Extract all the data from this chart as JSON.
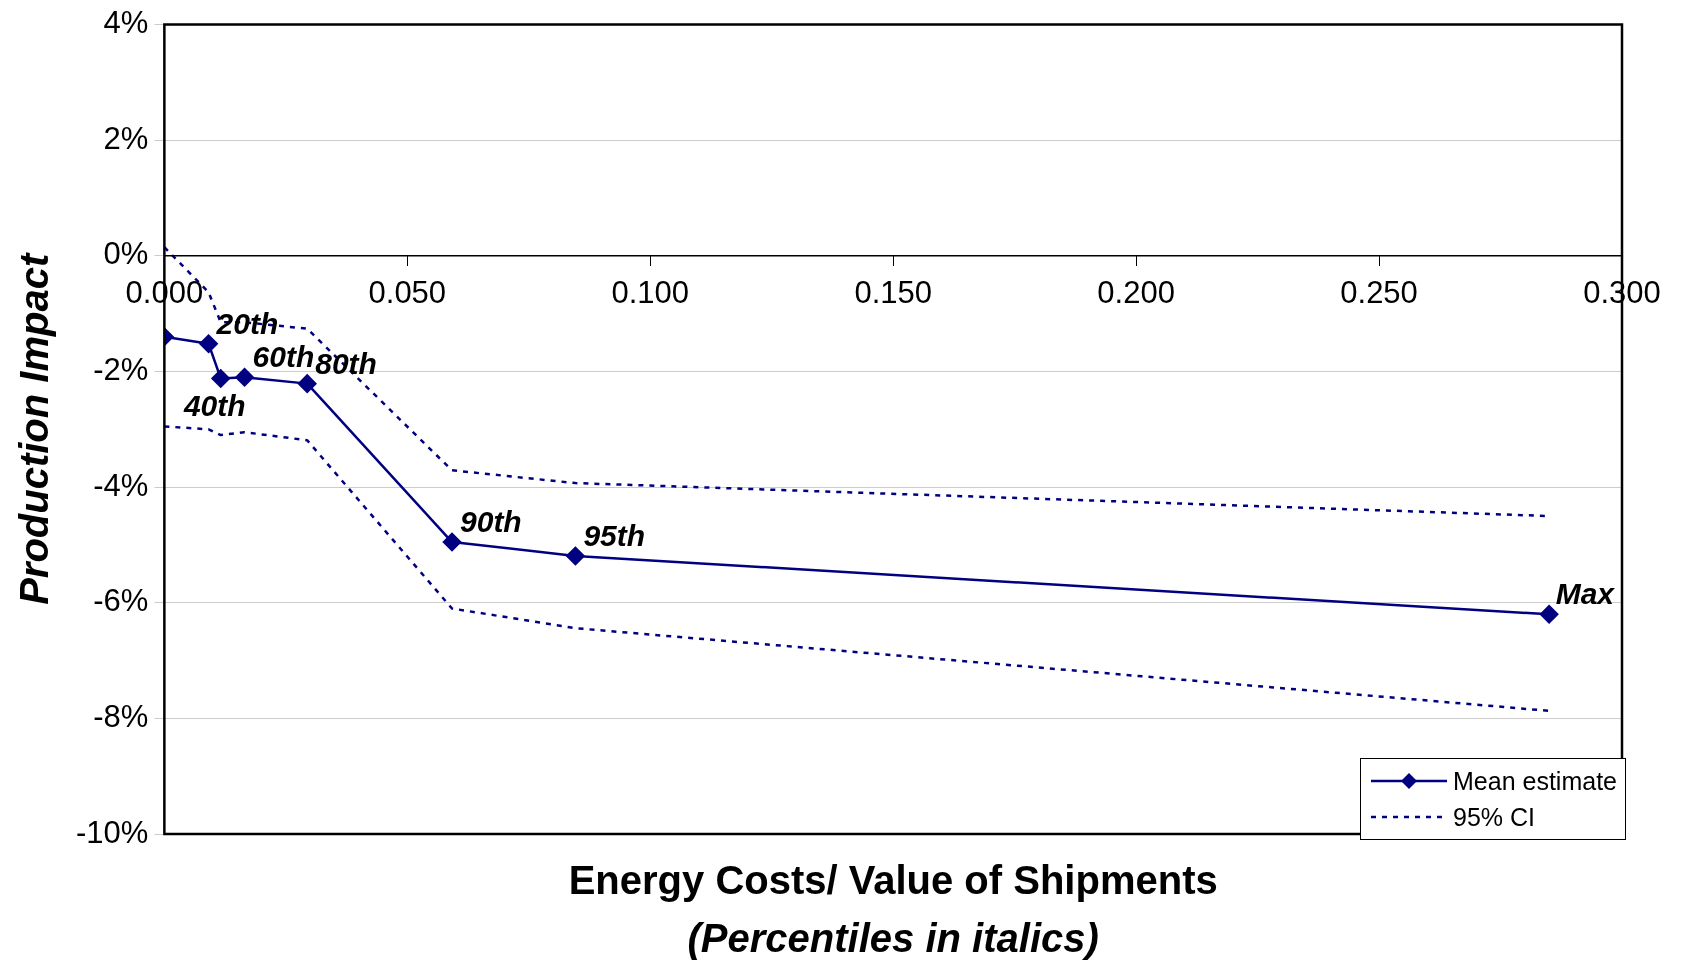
{
  "chart_data": {
    "type": "line",
    "xlabel": "Energy Costs/ Value of Shipments\n(Percentiles in italics)",
    "ylabel": "Production Impact",
    "series": [
      {
        "name": "Mean estimate",
        "color": "#000080",
        "marker": "diamond",
        "line_style": "solid",
        "x": [
          0,
          0.0091,
          0.0116,
          0.0165,
          0.0294,
          0.0592,
          0.0846,
          0.285
        ],
        "values": [
          -1.4,
          -1.52,
          -2.12,
          -2.1,
          -2.21,
          -4.95,
          -5.19,
          -6.2
        ]
      },
      {
        "name": "95% CI",
        "color": "#000080",
        "marker": "none",
        "line_style": "dotted",
        "x": [
          0,
          0.0091,
          0.0116,
          0.0165,
          0.0294,
          0.0592,
          0.0846,
          0.285
        ],
        "values": [
          0.15,
          -0.63,
          -1.15,
          -1.15,
          -1.26,
          -3.71,
          -3.93,
          -4.5
        ]
      },
      {
        "color": "#000080",
        "marker": "none",
        "line_style": "dotted",
        "x": [
          0,
          0.0091,
          0.0116,
          0.0165,
          0.0294,
          0.0592,
          0.0846,
          0.285
        ],
        "values": [
          -2.95,
          -3.0,
          -3.1,
          -3.05,
          -3.19,
          -6.1,
          -6.44,
          -7.87
        ]
      }
    ],
    "xlim": [
      0,
      0.3
    ],
    "xticks": [
      {
        "value": 0,
        "label": "0.000"
      },
      {
        "value": 0.05,
        "label": "0.050"
      },
      {
        "value": 0.1,
        "label": "0.100"
      },
      {
        "value": 0.15,
        "label": "0.150"
      },
      {
        "value": 0.2,
        "label": "0.200"
      },
      {
        "value": 0.25,
        "label": "0.250"
      },
      {
        "value": 0.3,
        "label": "0.300"
      }
    ],
    "ylim": [
      -10,
      4
    ],
    "yticks": [
      {
        "value": -10,
        "label": "-10%"
      },
      {
        "value": -8,
        "label": "-8%"
      },
      {
        "value": -6,
        "label": "-6%"
      },
      {
        "value": -4,
        "label": "-4%"
      },
      {
        "value": -2,
        "label": "-2%"
      },
      {
        "value": 0,
        "label": "0%"
      },
      {
        "value": 2,
        "label": "2%"
      },
      {
        "value": 4,
        "label": "4%"
      }
    ],
    "grid": "y",
    "legend": "bottom right",
    "annotations": [
      {
        "text": "20th",
        "x": 0.0091,
        "y": -1.52
      },
      {
        "text": "40th",
        "x": 0.0116,
        "y": -2.12
      },
      {
        "text": "60th",
        "x": 0.0165,
        "y": -2.1
      },
      {
        "text": "80th",
        "x": 0.0294,
        "y": -2.21
      },
      {
        "text": "90th",
        "x": 0.0592,
        "y": -4.95
      },
      {
        "text": "95th",
        "x": 0.0846,
        "y": -5.19
      },
      {
        "text": "Max",
        "x": 0.285,
        "y": -6.2
      }
    ]
  }
}
